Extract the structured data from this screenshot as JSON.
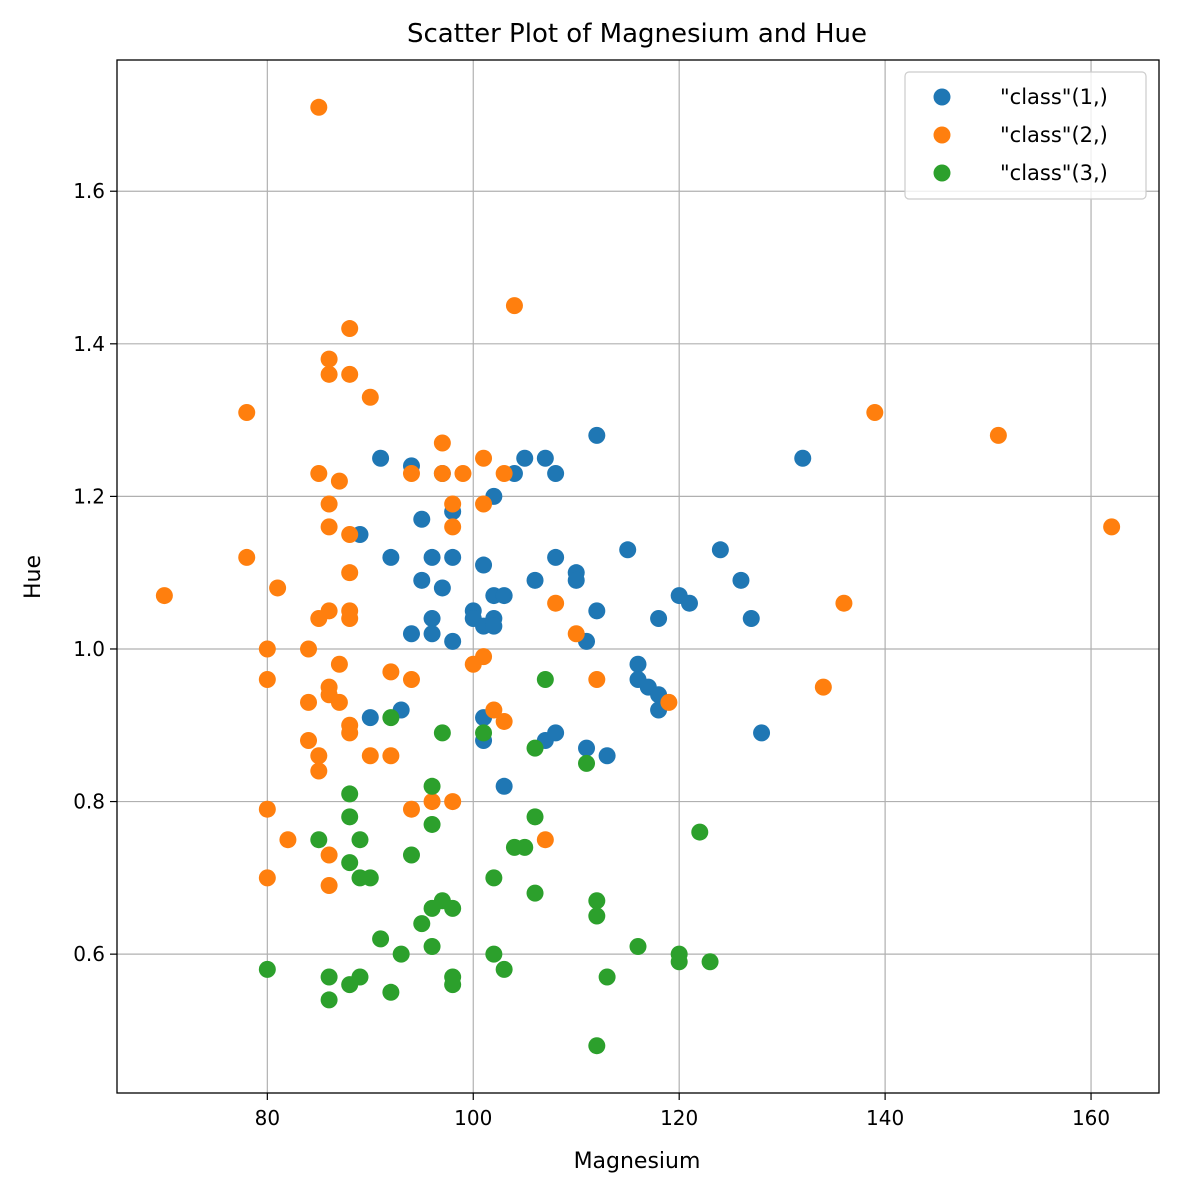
{
  "chart_data": {
    "type": "scatter",
    "title": "Scatter Plot of Magnesium and Hue",
    "xlabel": "Magnesium",
    "ylabel": "Hue",
    "xlim": [
      65.4,
      166.6
    ],
    "ylim": [
      0.418,
      1.772
    ],
    "xticks": [
      80,
      100,
      120,
      140,
      160
    ],
    "yticks": [
      0.6,
      0.8,
      1.0,
      1.2,
      1.4,
      1.6
    ],
    "grid": true,
    "legend_position": "top-right",
    "series": [
      {
        "name": "\"class\"(1,)",
        "color": "#1f77b4",
        "points": [
          [
            91,
            1.25
          ],
          [
            94,
            1.24
          ],
          [
            97,
            1.23
          ],
          [
            104,
            1.23
          ],
          [
            105,
            1.25
          ],
          [
            107,
            1.25
          ],
          [
            108,
            1.23
          ],
          [
            112,
            1.28
          ],
          [
            132,
            1.25
          ],
          [
            102,
            1.2
          ],
          [
            98,
            1.18
          ],
          [
            95,
            1.17
          ],
          [
            89,
            1.15
          ],
          [
            115,
            1.13
          ],
          [
            124,
            1.13
          ],
          [
            92,
            1.12
          ],
          [
            96,
            1.12
          ],
          [
            98,
            1.12
          ],
          [
            108,
            1.12
          ],
          [
            101,
            1.11
          ],
          [
            110,
            1.1
          ],
          [
            95,
            1.09
          ],
          [
            106,
            1.09
          ],
          [
            110,
            1.09
          ],
          [
            126,
            1.09
          ],
          [
            97,
            1.08
          ],
          [
            102,
            1.07
          ],
          [
            103,
            1.07
          ],
          [
            120,
            1.07
          ],
          [
            121,
            1.06
          ],
          [
            100,
            1.05
          ],
          [
            112,
            1.05
          ],
          [
            96,
            1.04
          ],
          [
            100,
            1.04
          ],
          [
            102,
            1.04
          ],
          [
            118,
            1.04
          ],
          [
            127,
            1.04
          ],
          [
            101,
            1.03
          ],
          [
            102,
            1.03
          ],
          [
            94,
            1.02
          ],
          [
            96,
            1.02
          ],
          [
            98,
            1.01
          ],
          [
            111,
            1.01
          ],
          [
            116,
            0.98
          ],
          [
            116,
            0.96
          ],
          [
            117,
            0.95
          ],
          [
            118,
            0.94
          ],
          [
            118,
            0.92
          ],
          [
            90,
            0.91
          ],
          [
            93,
            0.92
          ],
          [
            101,
            0.91
          ],
          [
            101,
            0.88
          ],
          [
            107,
            0.88
          ],
          [
            108,
            0.89
          ],
          [
            128,
            0.89
          ],
          [
            111,
            0.87
          ],
          [
            113,
            0.86
          ],
          [
            103,
            0.82
          ]
        ]
      },
      {
        "name": "\"class\"(2,)",
        "color": "#ff7f0e",
        "points": [
          [
            85,
            1.71
          ],
          [
            104,
            1.45
          ],
          [
            88,
            1.42
          ],
          [
            86,
            1.38
          ],
          [
            86,
            1.36
          ],
          [
            88,
            1.36
          ],
          [
            90,
            1.33
          ],
          [
            78,
            1.31
          ],
          [
            139,
            1.31
          ],
          [
            151,
            1.28
          ],
          [
            97,
            1.27
          ],
          [
            101,
            1.25
          ],
          [
            85,
            1.23
          ],
          [
            94,
            1.23
          ],
          [
            97,
            1.23
          ],
          [
            99,
            1.23
          ],
          [
            103,
            1.23
          ],
          [
            87,
            1.22
          ],
          [
            86,
            1.19
          ],
          [
            98,
            1.19
          ],
          [
            101,
            1.19
          ],
          [
            86,
            1.16
          ],
          [
            98,
            1.16
          ],
          [
            162,
            1.16
          ],
          [
            88,
            1.15
          ],
          [
            78,
            1.12
          ],
          [
            88,
            1.1
          ],
          [
            81,
            1.08
          ],
          [
            70,
            1.07
          ],
          [
            108,
            1.06
          ],
          [
            136,
            1.06
          ],
          [
            86,
            1.05
          ],
          [
            88,
            1.05
          ],
          [
            85,
            1.04
          ],
          [
            88,
            1.04
          ],
          [
            110,
            1.02
          ],
          [
            80,
            1.0
          ],
          [
            84,
            1.0
          ],
          [
            101,
            0.99
          ],
          [
            87,
            0.98
          ],
          [
            100,
            0.98
          ],
          [
            92,
            0.97
          ],
          [
            80,
            0.96
          ],
          [
            94,
            0.96
          ],
          [
            112,
            0.96
          ],
          [
            86,
            0.95
          ],
          [
            134,
            0.95
          ],
          [
            86,
            0.94
          ],
          [
            84,
            0.93
          ],
          [
            87,
            0.93
          ],
          [
            119,
            0.93
          ],
          [
            102,
            0.92
          ],
          [
            103,
            0.905
          ],
          [
            88,
            0.9
          ],
          [
            88,
            0.89
          ],
          [
            84,
            0.88
          ],
          [
            85,
            0.86
          ],
          [
            90,
            0.86
          ],
          [
            92,
            0.86
          ],
          [
            85,
            0.84
          ],
          [
            96,
            0.8
          ],
          [
            98,
            0.8
          ],
          [
            80,
            0.79
          ],
          [
            94,
            0.79
          ],
          [
            82,
            0.75
          ],
          [
            107,
            0.75
          ],
          [
            86,
            0.73
          ],
          [
            80,
            0.7
          ],
          [
            86,
            0.69
          ]
        ]
      },
      {
        "name": "\"class\"(3,)",
        "color": "#2ca02c",
        "points": [
          [
            107,
            0.96
          ],
          [
            92,
            0.91
          ],
          [
            101,
            0.89
          ],
          [
            97,
            0.89
          ],
          [
            106,
            0.87
          ],
          [
            111,
            0.85
          ],
          [
            96,
            0.82
          ],
          [
            88,
            0.81
          ],
          [
            88,
            0.78
          ],
          [
            106,
            0.78
          ],
          [
            96,
            0.77
          ],
          [
            122,
            0.76
          ],
          [
            85,
            0.75
          ],
          [
            89,
            0.75
          ],
          [
            104,
            0.74
          ],
          [
            105,
            0.74
          ],
          [
            94,
            0.73
          ],
          [
            88,
            0.72
          ],
          [
            89,
            0.7
          ],
          [
            90,
            0.7
          ],
          [
            102,
            0.7
          ],
          [
            106,
            0.68
          ],
          [
            97,
            0.67
          ],
          [
            112,
            0.67
          ],
          [
            96,
            0.66
          ],
          [
            98,
            0.66
          ],
          [
            112,
            0.65
          ],
          [
            95,
            0.64
          ],
          [
            91,
            0.62
          ],
          [
            96,
            0.61
          ],
          [
            116,
            0.61
          ],
          [
            93,
            0.6
          ],
          [
            102,
            0.6
          ],
          [
            120,
            0.6
          ],
          [
            120,
            0.59
          ],
          [
            123,
            0.59
          ],
          [
            80,
            0.58
          ],
          [
            103,
            0.58
          ],
          [
            86,
            0.57
          ],
          [
            89,
            0.57
          ],
          [
            98,
            0.57
          ],
          [
            113,
            0.57
          ],
          [
            88,
            0.56
          ],
          [
            98,
            0.56
          ],
          [
            92,
            0.55
          ],
          [
            86,
            0.54
          ],
          [
            112,
            0.48
          ]
        ]
      }
    ]
  }
}
